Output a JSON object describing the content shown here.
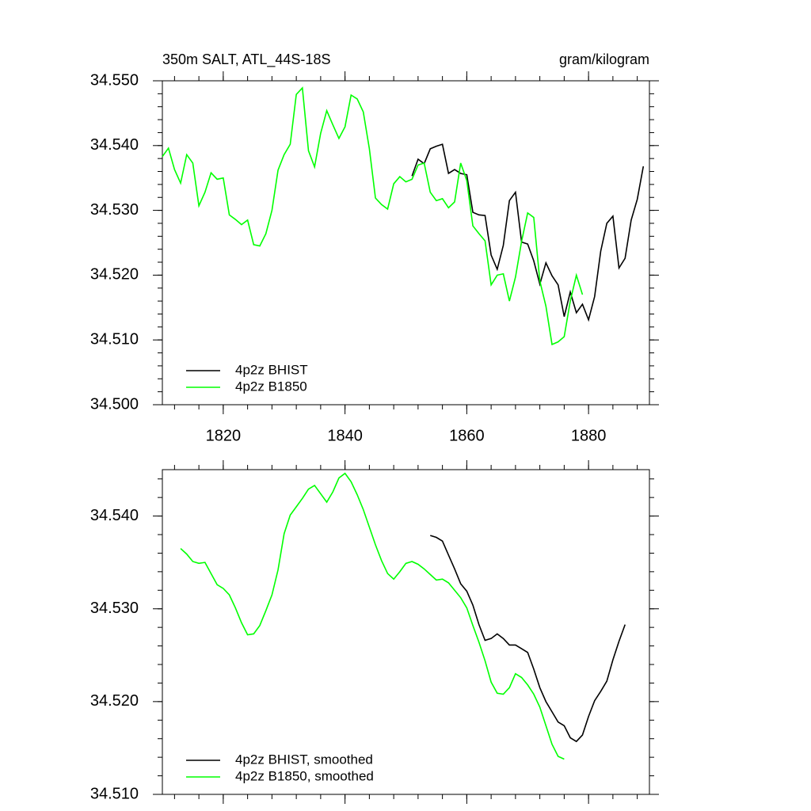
{
  "chart_data": [
    {
      "type": "line",
      "title": "350m SALT, ATL_44S-18S",
      "units": "gram/kilogram",
      "x": [
        1810,
        1811,
        1812,
        1813,
        1814,
        1815,
        1816,
        1817,
        1818,
        1819,
        1820,
        1821,
        1822,
        1823,
        1824,
        1825,
        1826,
        1827,
        1828,
        1829,
        1830,
        1831,
        1832,
        1833,
        1834,
        1835,
        1836,
        1837,
        1838,
        1839,
        1840,
        1841,
        1842,
        1843,
        1844,
        1845,
        1846,
        1847,
        1848,
        1849,
        1850,
        1851,
        1852,
        1853,
        1854,
        1855,
        1856,
        1857,
        1858,
        1859,
        1860,
        1861,
        1862,
        1863,
        1864,
        1865,
        1866,
        1867,
        1868,
        1869,
        1870,
        1871,
        1872,
        1873,
        1874,
        1875,
        1876,
        1877,
        1878,
        1879,
        1880,
        1881,
        1882,
        1883,
        1884,
        1885,
        1886,
        1887,
        1888,
        1889
      ],
      "series": [
        {
          "name": "4p2z BHIST",
          "color": "#000000",
          "values": [
            null,
            null,
            null,
            null,
            null,
            null,
            null,
            null,
            null,
            null,
            null,
            null,
            null,
            null,
            null,
            null,
            null,
            null,
            null,
            null,
            null,
            null,
            null,
            null,
            null,
            null,
            null,
            null,
            null,
            null,
            null,
            null,
            null,
            null,
            null,
            null,
            null,
            null,
            null,
            null,
            null,
            34.5353,
            34.5379,
            34.5372,
            34.5395,
            34.5399,
            34.5402,
            34.5357,
            34.5363,
            34.5357,
            34.5355,
            34.5297,
            34.5293,
            34.5292,
            34.5231,
            34.5209,
            34.5246,
            34.5315,
            34.5328,
            34.5251,
            34.5248,
            34.5222,
            34.5186,
            34.5219,
            34.5199,
            34.5185,
            34.5136,
            34.5174,
            34.5142,
            34.5155,
            34.5131,
            34.5167,
            34.5237,
            34.528,
            34.5291,
            34.5211,
            34.5226,
            34.5285,
            34.5317,
            34.5368
          ]
        },
        {
          "name": "4p2z B1850",
          "color": "#00ff00",
          "values": [
            34.5383,
            34.5396,
            34.5363,
            34.5342,
            34.5386,
            34.5373,
            34.5307,
            34.5328,
            34.5358,
            34.5348,
            34.535,
            34.5293,
            34.5286,
            34.5278,
            34.5285,
            34.5247,
            34.5245,
            34.5264,
            34.53,
            34.5362,
            34.5386,
            34.5402,
            34.5479,
            34.5489,
            34.5392,
            34.5367,
            34.5419,
            34.5454,
            34.5432,
            34.5411,
            34.5429,
            34.5478,
            34.5472,
            34.5452,
            34.5395,
            34.5319,
            34.5309,
            34.5302,
            34.5341,
            34.5352,
            34.5344,
            34.5348,
            34.537,
            34.5373,
            34.5328,
            34.5315,
            34.5318,
            34.5304,
            34.5313,
            34.5373,
            34.5346,
            34.5276,
            34.5264,
            34.5253,
            34.5185,
            34.52,
            34.5202,
            34.516,
            34.5197,
            34.5252,
            34.5296,
            34.5289,
            34.5191,
            34.5152,
            34.5093,
            34.5097,
            34.5105,
            34.516,
            34.52,
            34.517,
            null,
            null,
            null,
            null,
            null,
            null,
            null,
            null,
            null,
            null
          ]
        }
      ],
      "xlim": [
        1810,
        1890
      ],
      "ylim": [
        34.5,
        34.55
      ],
      "xticks": [
        1820,
        1840,
        1860,
        1880
      ],
      "yticks": [
        {
          "value": 34.5,
          "label": "34.500"
        },
        {
          "value": 34.51,
          "label": "34.510"
        },
        {
          "value": 34.52,
          "label": "34.520"
        },
        {
          "value": 34.53,
          "label": "34.530"
        },
        {
          "value": 34.54,
          "label": "34.540"
        },
        {
          "value": 34.55,
          "label": "34.550"
        }
      ],
      "minor_divisions": 5,
      "show_xtick_labels": true,
      "legend": "lower left"
    },
    {
      "type": "line",
      "x": [
        1813,
        1814,
        1815,
        1816,
        1817,
        1818,
        1819,
        1820,
        1821,
        1822,
        1823,
        1824,
        1825,
        1826,
        1827,
        1828,
        1829,
        1830,
        1831,
        1832,
        1833,
        1834,
        1835,
        1836,
        1837,
        1838,
        1839,
        1840,
        1841,
        1842,
        1843,
        1844,
        1845,
        1846,
        1847,
        1848,
        1849,
        1850,
        1851,
        1852,
        1853,
        1854,
        1855,
        1856,
        1857,
        1858,
        1859,
        1860,
        1861,
        1862,
        1863,
        1864,
        1865,
        1866,
        1867,
        1868,
        1869,
        1870,
        1871,
        1872,
        1873,
        1874,
        1875,
        1876,
        1877,
        1878,
        1879,
        1880,
        1881,
        1882,
        1883,
        1884,
        1885,
        1886
      ],
      "series": [
        {
          "name": "4p2z BHIST, smoothed",
          "color": "#000000",
          "values": [
            null,
            null,
            null,
            null,
            null,
            null,
            null,
            null,
            null,
            null,
            null,
            null,
            null,
            null,
            null,
            null,
            null,
            null,
            null,
            null,
            null,
            null,
            null,
            null,
            null,
            null,
            null,
            null,
            null,
            null,
            null,
            null,
            null,
            null,
            null,
            null,
            null,
            null,
            null,
            null,
            null,
            34.5379,
            34.5377,
            34.5373,
            34.5358,
            34.5343,
            34.5327,
            34.5319,
            34.5304,
            34.5283,
            34.5266,
            34.5268,
            34.5273,
            34.5268,
            34.5261,
            34.5261,
            34.5257,
            34.5253,
            34.5235,
            34.5215,
            34.52,
            34.5189,
            34.5178,
            34.5174,
            34.5161,
            34.5157,
            34.5164,
            34.5184,
            34.5201,
            34.5211,
            34.5222,
            34.5245,
            34.5265,
            34.5283
          ]
        },
        {
          "name": "4p2z B1850, smoothed",
          "color": "#00ff00",
          "values": [
            34.5365,
            34.5359,
            34.5351,
            34.5349,
            34.535,
            34.5338,
            34.5326,
            34.5322,
            34.5315,
            34.5301,
            34.5285,
            34.5272,
            34.5273,
            34.5282,
            34.5298,
            34.5315,
            34.5342,
            34.5381,
            34.5401,
            34.541,
            34.5419,
            34.5429,
            34.5433,
            34.5424,
            34.5415,
            34.5426,
            34.5441,
            34.5446,
            34.5437,
            34.5423,
            34.5407,
            34.5388,
            34.5369,
            34.5352,
            34.5338,
            34.5332,
            34.534,
            34.5349,
            34.5351,
            34.5348,
            34.5343,
            34.5337,
            34.5331,
            34.5332,
            34.5328,
            34.532,
            34.5312,
            34.5301,
            34.5282,
            34.5264,
            34.5244,
            34.5221,
            34.5209,
            34.5208,
            34.5215,
            34.523,
            34.5226,
            34.5218,
            34.5208,
            34.5194,
            34.5174,
            34.5154,
            34.5141,
            34.5138,
            null,
            null,
            null,
            null,
            null,
            null,
            null,
            null,
            null,
            null
          ]
        }
      ],
      "xlim": [
        1810,
        1890
      ],
      "ylim": [
        34.51,
        34.545
      ],
      "xticks": [
        1820,
        1840,
        1860,
        1880
      ],
      "yticks": [
        {
          "value": 34.51,
          "label": "34.510"
        },
        {
          "value": 34.52,
          "label": "34.520"
        },
        {
          "value": 34.53,
          "label": "34.530"
        },
        {
          "value": 34.54,
          "label": "34.540"
        }
      ],
      "minor_divisions": 5,
      "show_xtick_labels": false,
      "legend": "lower left"
    }
  ]
}
